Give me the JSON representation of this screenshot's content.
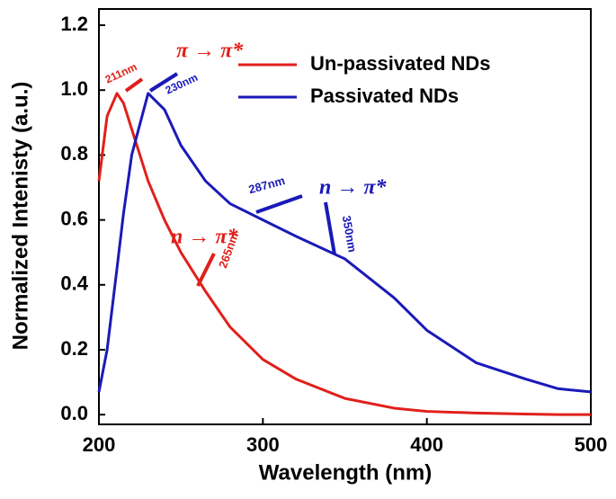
{
  "chart_data": {
    "type": "line",
    "xlabel": "Wavelength (nm)",
    "ylabel": "Normalized Intenisty (a.u.)",
    "x": [
      200,
      205,
      211,
      215,
      220,
      230,
      240,
      250,
      265,
      280,
      300,
      320,
      350,
      380,
      400,
      430,
      460,
      480,
      500
    ],
    "series": [
      {
        "name": "Un-passivated NDs",
        "color": "#e0201b",
        "values": [
          0.72,
          0.92,
          0.99,
          0.96,
          0.88,
          0.72,
          0.6,
          0.5,
          0.38,
          0.27,
          0.17,
          0.11,
          0.05,
          0.02,
          0.01,
          0.005,
          0.002,
          0,
          0
        ]
      },
      {
        "name": "Passivated NDs",
        "color": "#1a1ab8",
        "values": [
          0.07,
          0.2,
          0.45,
          0.62,
          0.8,
          0.99,
          0.94,
          0.83,
          0.72,
          0.65,
          0.6,
          0.55,
          0.48,
          0.36,
          0.26,
          0.16,
          0.11,
          0.08,
          0.07
        ]
      }
    ],
    "xlim": [
      200,
      500
    ],
    "xticks": [
      200,
      300,
      400,
      500
    ],
    "ylim": [
      -0.03,
      1.25
    ],
    "yticks": [
      {
        "value": 0,
        "label": "0.0"
      },
      0.2,
      0.4,
      0.6,
      0.8,
      {
        "value": 1,
        "label": "1.0"
      },
      1.2
    ],
    "legend": "upper right",
    "annotations": [
      {
        "text": "211nm",
        "color": "#e0201b"
      },
      {
        "text": "π → π*",
        "color": "#e0201b"
      },
      {
        "text": "230nm",
        "color": "#1a1ab8"
      },
      {
        "text": "n → π*",
        "color": "#1a1ab8"
      },
      {
        "text": "287nm",
        "color": "#1a1ab8"
      },
      {
        "text": "350nm",
        "color": "#1a1ab8"
      },
      {
        "text": "n → π*",
        "color": "#e0201b"
      },
      {
        "text": "265nm",
        "color": "#e0201b"
      }
    ]
  }
}
